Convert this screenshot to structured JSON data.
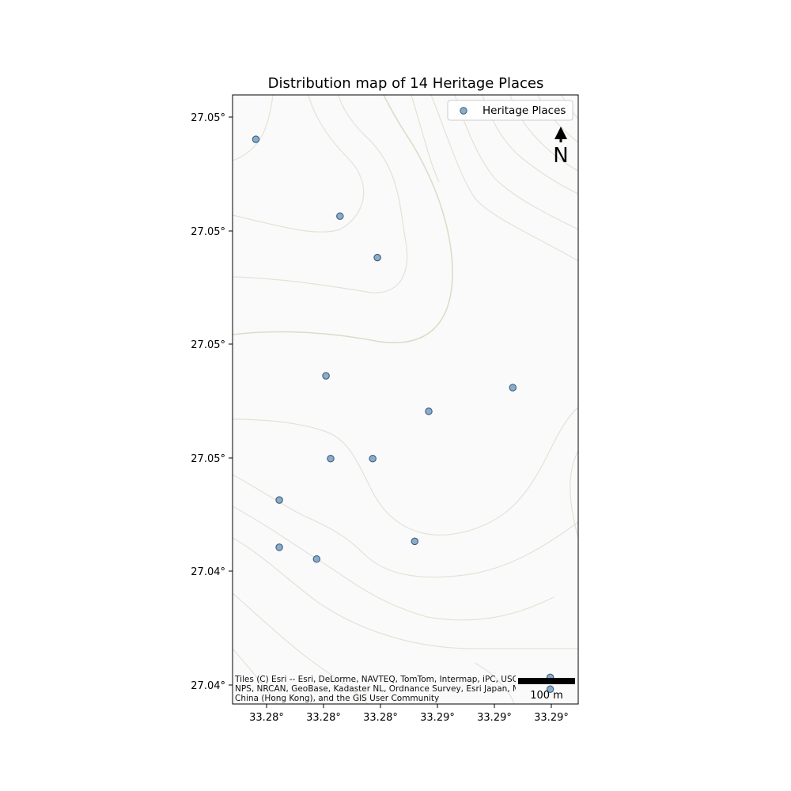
{
  "map": {
    "title": "Distribution map of 14 Heritage Places",
    "legend": {
      "label": "Heritage Places"
    },
    "north_arrow": {
      "label": "N"
    },
    "scale_bar": {
      "label": "100 m"
    },
    "attribution": [
      "Tiles (C) Esri -- Esri, DeLorme, NAVTEQ, TomTom, Intermap, iPC, USGS, FAO,",
      "NPS, NRCAN, GeoBase, Kadaster NL, Ordnance Survey, Esri Japan, METI, Esri",
      "China (Hong Kong), and the GIS User Community"
    ],
    "x_tick_labels": [
      "33.28°",
      "33.28°",
      "33.28°",
      "33.29°",
      "33.29°",
      "33.29°"
    ],
    "y_tick_labels": [
      "27.05°",
      "27.05°",
      "27.05°",
      "27.05°",
      "27.04°",
      "27.04°"
    ],
    "colors": {
      "marker_fill": "#8aaccb",
      "marker_edge": "#3f5d7a",
      "map_background": "#fafafa",
      "contour": "#e4e2d6"
    },
    "points": [
      {
        "lon": 33.2797,
        "lat": 27.0523
      },
      {
        "lon": 33.2815,
        "lat": 27.051
      },
      {
        "lon": 33.2823,
        "lat": 27.0503
      },
      {
        "lon": 33.2812,
        "lat": 27.0483
      },
      {
        "lon": 33.2852,
        "lat": 27.0481
      },
      {
        "lon": 33.2834,
        "lat": 27.0477
      },
      {
        "lon": 33.2813,
        "lat": 27.0469
      },
      {
        "lon": 33.2822,
        "lat": 27.0469
      },
      {
        "lon": 33.2802,
        "lat": 27.0462
      },
      {
        "lon": 33.2802,
        "lat": 27.0454
      },
      {
        "lon": 33.281,
        "lat": 27.0452
      },
      {
        "lon": 33.2831,
        "lat": 27.0455
      },
      {
        "lon": 33.286,
        "lat": 27.0432
      },
      {
        "lon": 33.286,
        "lat": 27.043
      }
    ]
  }
}
